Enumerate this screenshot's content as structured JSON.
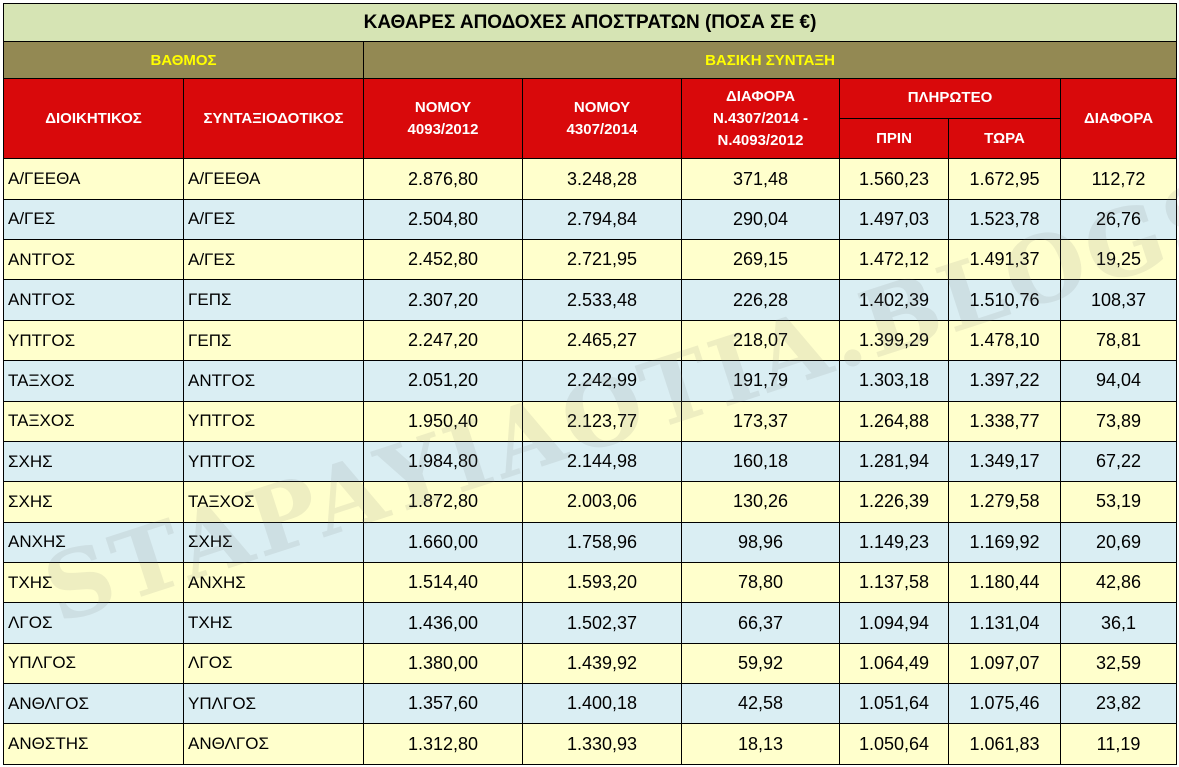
{
  "title": "ΚΑΘΑΡΕΣ ΑΠΟΔΟΧΕΣ ΑΠΟΣΤΡΑΤΩΝ (ΠΟΣΑ ΣΕ €)",
  "group_headers": {
    "rank": "ΒΑΘΜΟΣ",
    "pension": "ΒΑΣΙΚΗ ΣΥΝΤΑΞΗ"
  },
  "columns": {
    "admin": "ΔΙΟΙΚΗΤΙΚΟΣ",
    "pension_rank": "ΣΥΝΤΑΞΙΟΔΟΤΙΚΟΣ",
    "law_4093_line1": "ΝΟΜΟΥ",
    "law_4093_line2": "4093/2012",
    "law_4307_line1": "ΝΟΜΟΥ",
    "law_4307_line2": "4307/2014",
    "diff_laws_line1": "ΔΙΑΦΟΡΑ",
    "diff_laws_line2": "Ν.4307/2014 -",
    "diff_laws_line3": "Ν.4093/2012",
    "paid": "ΠΛΗΡΩΤΕΟ",
    "paid_before": "ΠΡΙΝ",
    "paid_now": "ΤΩΡΑ",
    "diff": "ΔΙΑΦΟΡΑ"
  },
  "watermark": "STAPAYIAOTIA.BLOGSPOT.GR",
  "colors": {
    "title_bg": "#d6e4b4",
    "band_bg": "#938953",
    "band_text": "#ffff00",
    "header_bg": "#d9090b",
    "row_yellow": "#ffffcc",
    "row_blue": "#daeef3"
  },
  "rows": [
    [
      "Α/ΓΕΕΘΑ",
      "Α/ΓΕΕΘΑ",
      "2.876,80",
      "3.248,28",
      "371,48",
      "1.560,23",
      "1.672,95",
      "112,72"
    ],
    [
      "Α/ΓΕΣ",
      "Α/ΓΕΣ",
      "2.504,80",
      "2.794,84",
      "290,04",
      "1.497,03",
      "1.523,78",
      "26,76"
    ],
    [
      "ΑΝΤΓΟΣ",
      "Α/ΓΕΣ",
      "2.452,80",
      "2.721,95",
      "269,15",
      "1.472,12",
      "1.491,37",
      "19,25"
    ],
    [
      "ΑΝΤΓΟΣ",
      "ΓΕΠΣ",
      "2.307,20",
      "2.533,48",
      "226,28",
      "1.402,39",
      "1.510,76",
      "108,37"
    ],
    [
      "ΥΠΤΓΟΣ",
      "ΓΕΠΣ",
      "2.247,20",
      "2.465,27",
      "218,07",
      "1.399,29",
      "1.478,10",
      "78,81"
    ],
    [
      "ΤΑΞΧΟΣ",
      "ΑΝΤΓΟΣ",
      "2.051,20",
      "2.242,99",
      "191,79",
      "1.303,18",
      "1.397,22",
      "94,04"
    ],
    [
      "ΤΑΞΧΟΣ",
      "ΥΠΤΓΟΣ",
      "1.950,40",
      "2.123,77",
      "173,37",
      "1.264,88",
      "1.338,77",
      "73,89"
    ],
    [
      "ΣΧΗΣ",
      "ΥΠΤΓΟΣ",
      "1.984,80",
      "2.144,98",
      "160,18",
      "1.281,94",
      "1.349,17",
      "67,22"
    ],
    [
      "ΣΧΗΣ",
      "ΤΑΞΧΟΣ",
      "1.872,80",
      "2.003,06",
      "130,26",
      "1.226,39",
      "1.279,58",
      "53,19"
    ],
    [
      "ΑΝΧΗΣ",
      "ΣΧΗΣ",
      "1.660,00",
      "1.758,96",
      "98,96",
      "1.149,23",
      "1.169,92",
      "20,69"
    ],
    [
      "ΤΧΗΣ",
      "ΑΝΧΗΣ",
      "1.514,40",
      "1.593,20",
      "78,80",
      "1.137,58",
      "1.180,44",
      "42,86"
    ],
    [
      "ΛΓΟΣ",
      "ΤΧΗΣ",
      "1.436,00",
      "1.502,37",
      "66,37",
      "1.094,94",
      "1.131,04",
      "36,1"
    ],
    [
      "ΥΠΛΓΟΣ",
      "ΛΓΟΣ",
      "1.380,00",
      "1.439,92",
      "59,92",
      "1.064,49",
      "1.097,07",
      "32,59"
    ],
    [
      "ΑΝΘΛΓΟΣ",
      "ΥΠΛΓΟΣ",
      "1.357,60",
      "1.400,18",
      "42,58",
      "1.051,64",
      "1.075,46",
      "23,82"
    ],
    [
      "ΑΝΘΣΤΗΣ",
      "ΑΝΘΛΓΟΣ",
      "1.312,80",
      "1.330,93",
      "18,13",
      "1.050,64",
      "1.061,83",
      "11,19"
    ]
  ]
}
